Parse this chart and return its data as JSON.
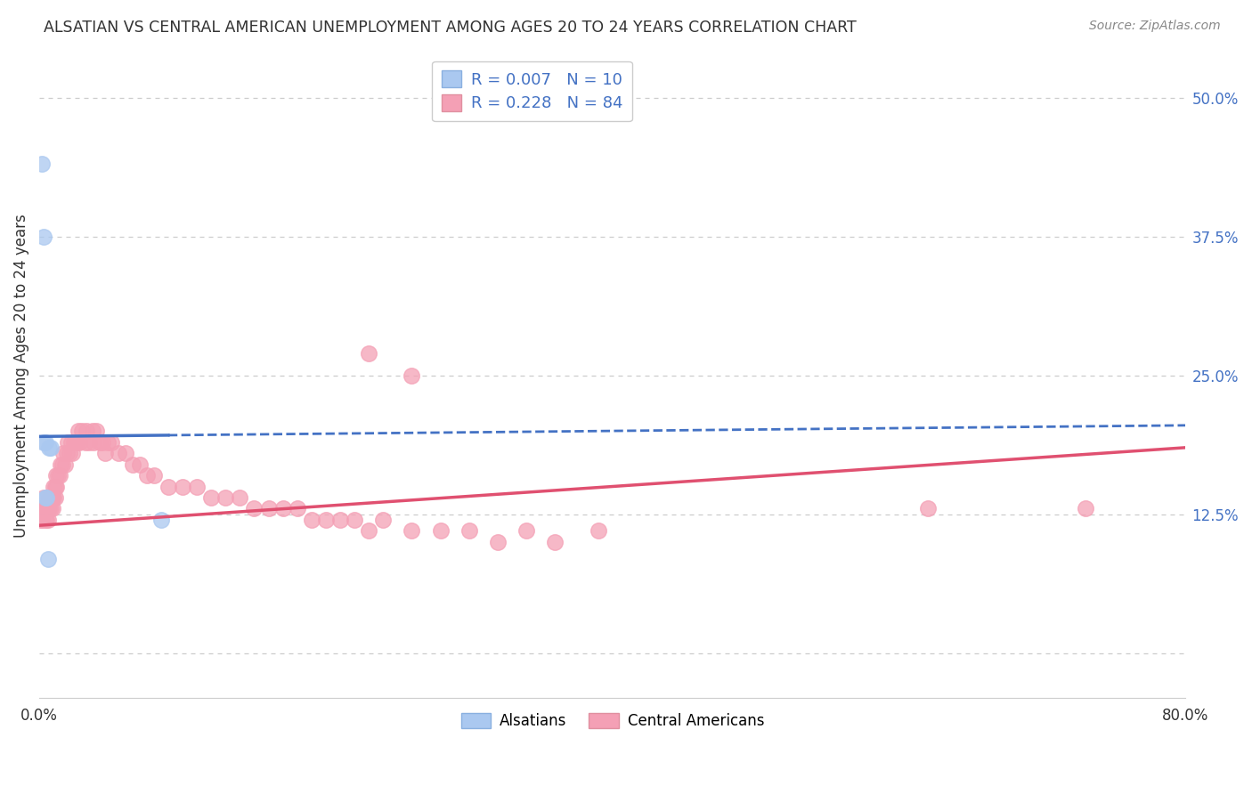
{
  "title": "ALSATIAN VS CENTRAL AMERICAN UNEMPLOYMENT AMONG AGES 20 TO 24 YEARS CORRELATION CHART",
  "source": "Source: ZipAtlas.com",
  "ylabel": "Unemployment Among Ages 20 to 24 years",
  "xlim": [
    0.0,
    0.8
  ],
  "ylim": [
    -0.04,
    0.54
  ],
  "xtick_pos": [
    0.0,
    0.1,
    0.2,
    0.3,
    0.4,
    0.5,
    0.6,
    0.7,
    0.8
  ],
  "xtick_labels": [
    "0.0%",
    "",
    "",
    "",
    "",
    "",
    "",
    "",
    "80.0%"
  ],
  "ytick_vals": [
    0.0,
    0.125,
    0.25,
    0.375,
    0.5
  ],
  "ytick_labels": [
    "",
    "12.5%",
    "25.0%",
    "37.5%",
    "50.0%"
  ],
  "legend_R1": "R = 0.007",
  "legend_N1": "N = 10",
  "legend_R2": "R = 0.228",
  "legend_N2": "N = 84",
  "alsatian_color": "#aac8f0",
  "central_color": "#f4a0b5",
  "alsatian_edge": "#aac8f0",
  "central_edge": "#f4a0b5",
  "alsatian_line_color": "#4472c4",
  "central_line_color": "#e05070",
  "text_color": "#333333",
  "legend_text_color": "#4472c4",
  "background_color": "#ffffff",
  "grid_color": "#cccccc",
  "alsatian_x": [
    0.002,
    0.003,
    0.003,
    0.004,
    0.004,
    0.005,
    0.006,
    0.007,
    0.008,
    0.085
  ],
  "alsatian_y": [
    0.44,
    0.375,
    0.19,
    0.19,
    0.14,
    0.14,
    0.085,
    0.185,
    0.185,
    0.12
  ],
  "central_x": [
    0.001,
    0.002,
    0.002,
    0.003,
    0.003,
    0.004,
    0.004,
    0.005,
    0.005,
    0.006,
    0.006,
    0.007,
    0.007,
    0.008,
    0.008,
    0.009,
    0.009,
    0.01,
    0.01,
    0.011,
    0.011,
    0.012,
    0.012,
    0.013,
    0.014,
    0.015,
    0.016,
    0.017,
    0.018,
    0.019,
    0.02,
    0.021,
    0.022,
    0.023,
    0.024,
    0.025,
    0.026,
    0.027,
    0.028,
    0.03,
    0.032,
    0.033,
    0.035,
    0.037,
    0.038,
    0.04,
    0.042,
    0.044,
    0.046,
    0.048,
    0.05,
    0.055,
    0.06,
    0.065,
    0.07,
    0.075,
    0.08,
    0.09,
    0.1,
    0.11,
    0.12,
    0.13,
    0.14,
    0.15,
    0.16,
    0.17,
    0.18,
    0.19,
    0.2,
    0.21,
    0.22,
    0.23,
    0.24,
    0.26,
    0.28,
    0.3,
    0.32,
    0.34,
    0.36,
    0.39,
    0.62,
    0.73,
    0.23,
    0.26
  ],
  "central_y": [
    0.12,
    0.13,
    0.12,
    0.14,
    0.13,
    0.13,
    0.12,
    0.13,
    0.12,
    0.13,
    0.12,
    0.14,
    0.13,
    0.14,
    0.13,
    0.14,
    0.13,
    0.15,
    0.14,
    0.15,
    0.14,
    0.16,
    0.15,
    0.16,
    0.16,
    0.17,
    0.17,
    0.18,
    0.17,
    0.18,
    0.19,
    0.18,
    0.19,
    0.18,
    0.19,
    0.19,
    0.19,
    0.2,
    0.19,
    0.2,
    0.19,
    0.2,
    0.19,
    0.2,
    0.19,
    0.2,
    0.19,
    0.19,
    0.18,
    0.19,
    0.19,
    0.18,
    0.18,
    0.17,
    0.17,
    0.16,
    0.16,
    0.15,
    0.15,
    0.15,
    0.14,
    0.14,
    0.14,
    0.13,
    0.13,
    0.13,
    0.13,
    0.12,
    0.12,
    0.12,
    0.12,
    0.11,
    0.12,
    0.11,
    0.11,
    0.11,
    0.1,
    0.11,
    0.1,
    0.11,
    0.13,
    0.13,
    0.27,
    0.25
  ],
  "alsatian_trend": [
    0.195,
    0.205
  ],
  "central_trend": [
    0.115,
    0.185
  ],
  "trend_x": [
    0.0,
    0.8
  ]
}
